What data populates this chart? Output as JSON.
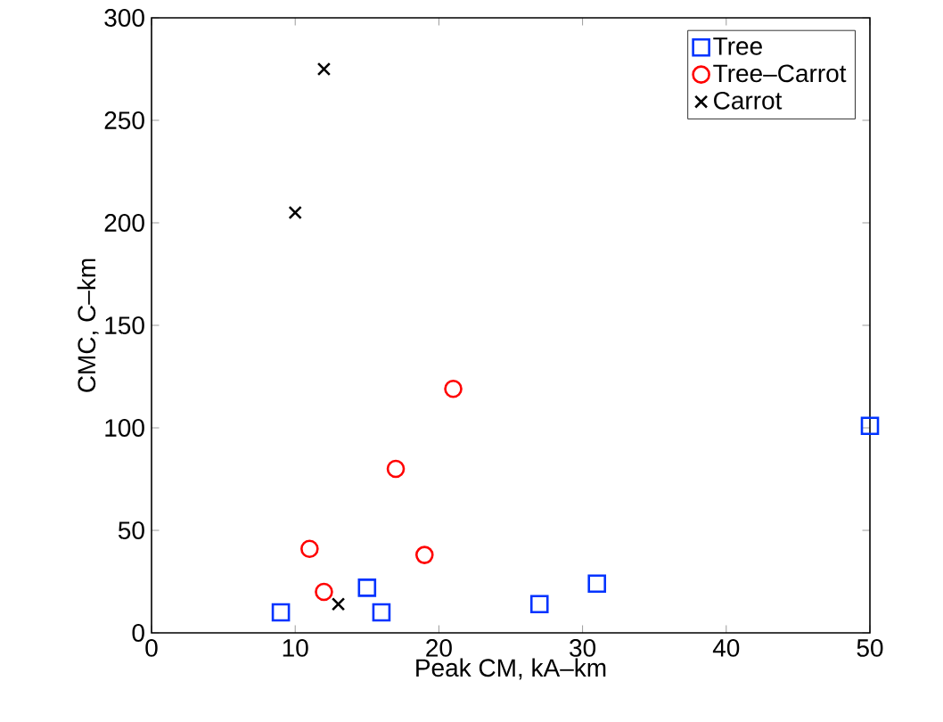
{
  "chart_data": {
    "type": "scatter",
    "xlabel": "Peak CM, kA–km",
    "ylabel": "CMC, C–km",
    "xlim": [
      0,
      50
    ],
    "xticks": [
      0,
      10,
      20,
      30,
      40,
      50
    ],
    "ylim": [
      0,
      300
    ],
    "yticks": [
      0,
      50,
      100,
      150,
      200,
      250,
      300
    ],
    "legend": "top right",
    "grid": false,
    "series": [
      {
        "name": "Tree",
        "color": "#0033ff",
        "marker": "square",
        "x": [
          9,
          15,
          16,
          27,
          31,
          50
        ],
        "values": [
          10,
          22,
          10,
          14,
          24,
          101
        ]
      },
      {
        "name": "Tree–Carrot",
        "color": "#ff0000",
        "marker": "circle",
        "x": [
          11,
          12,
          17,
          19,
          21
        ],
        "values": [
          41,
          20,
          80,
          38,
          119
        ]
      },
      {
        "name": "Carrot",
        "color": "#000000",
        "marker": "cross",
        "x": [
          10,
          12,
          13
        ],
        "values": [
          205,
          275,
          14
        ]
      }
    ]
  }
}
